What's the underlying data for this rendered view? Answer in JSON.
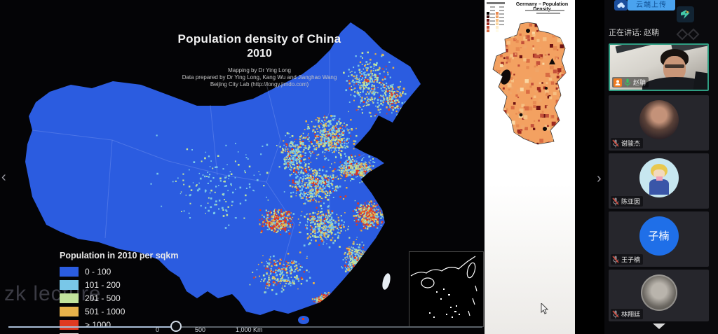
{
  "topbar": {
    "upload_label": "云端上传",
    "cloud_icon": "cloud-upload-icon",
    "corner_logo": "app-logo-icon"
  },
  "sidebar": {
    "speaking_label": "正在讲话: 赵聃",
    "participants": [
      {
        "name": "赵聃",
        "mic": "on",
        "tile": "video",
        "badge": "member-icon"
      },
      {
        "name": "谢骏杰",
        "mic": "muted",
        "tile": "photo-avatar"
      },
      {
        "name": "陈亚囡",
        "mic": "muted",
        "tile": "cartoon-avatar"
      },
      {
        "name": "王子楠",
        "mic": "muted",
        "tile": "initials-avatar",
        "avatar_text": "子楠"
      },
      {
        "name": "林翔廷",
        "mic": "muted",
        "tile": "gray-photo-avatar"
      }
    ]
  },
  "slide": {
    "title": "Population density of China",
    "year": "2010",
    "credits": [
      "Mapping by Dr Ying Long",
      "Data prepared by Dr Ying Long, Kang Wu and Jianghao Wang",
      "Beijing City Lab (http://longy.jimdo.com)"
    ],
    "legend": {
      "title": "Population in 2010 per sqkm",
      "items": [
        {
          "label": "0 - 100",
          "color": "#2b5ce0"
        },
        {
          "label": "101 - 200",
          "color": "#79c7e8"
        },
        {
          "label": "201 - 500",
          "color": "#c2e39c"
        },
        {
          "label": "501 - 1000",
          "color": "#e7b24a"
        },
        {
          "label": "> 1000",
          "color": "#e03a22"
        },
        {
          "label": "",
          "color": "#efece6"
        }
      ]
    },
    "scale_ticks": [
      "0",
      "500",
      "1,000 Km"
    ],
    "watermark": "zk lecture",
    "map_base_color": "#2b5ce0"
  },
  "germany": {
    "title": "Germany – Population Density",
    "legend_left": [
      "#000000",
      "#3d0a0a",
      "#6e1212",
      "#9e2a20",
      "#c4503a",
      "#d96c43"
    ],
    "legend_right": [
      "#e88a52",
      "#f0a568",
      "#f6bf82",
      "#fad7a2",
      "#fdebc8",
      "#fffbe9"
    ]
  }
}
